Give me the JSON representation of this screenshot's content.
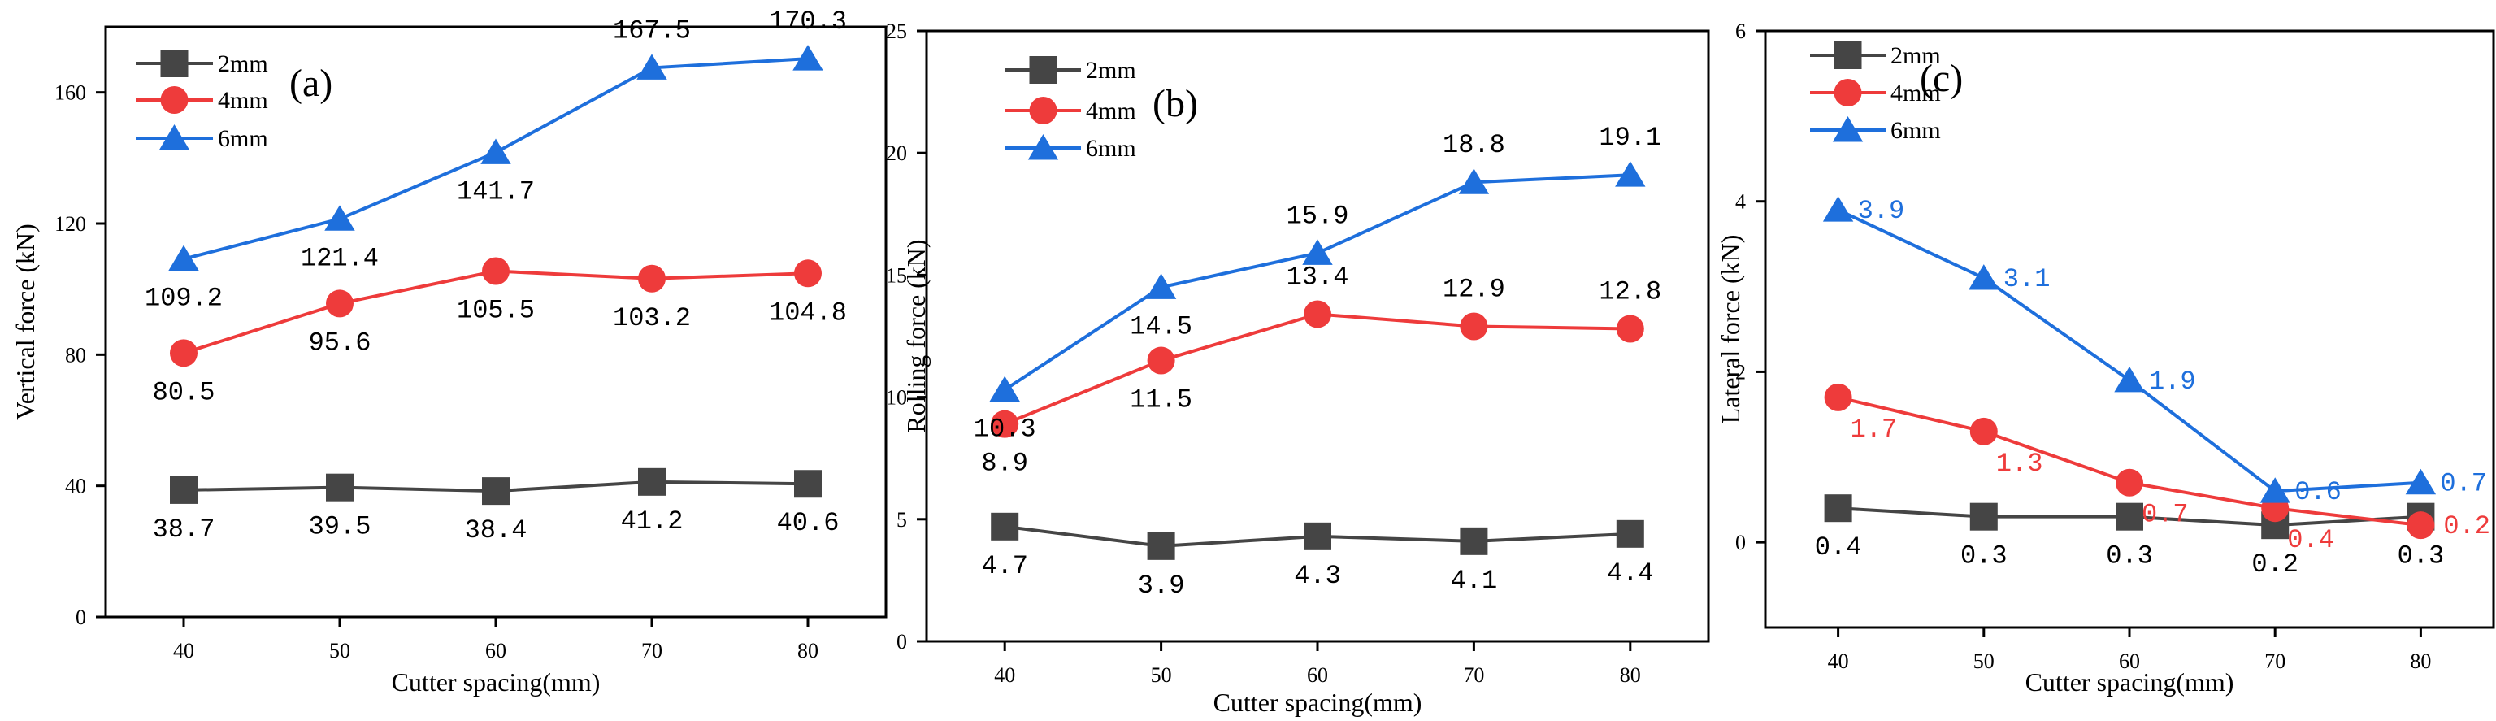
{
  "chart_data": [
    {
      "type": "line",
      "panel": "(a)",
      "xlabel": "Cutter spacing(mm)",
      "ylabel": "Vertical force (kN)",
      "x": [
        40,
        50,
        60,
        70,
        80
      ],
      "x_ticks": [
        "40",
        "50",
        "60",
        "70",
        "80"
      ],
      "y_ticks": [
        "0",
        "40",
        "80",
        "120",
        "160"
      ],
      "xlim": [
        35,
        85
      ],
      "ylim": [
        0,
        180
      ],
      "legend_position": "top-left",
      "series": [
        {
          "name": "2mm",
          "marker": "square",
          "color": "#454545",
          "label_color": "#000000",
          "values": [
            38.7,
            39.5,
            38.4,
            41.2,
            40.6
          ],
          "labels": [
            "38.7",
            "39.5",
            "38.4",
            "41.2",
            "40.6"
          ]
        },
        {
          "name": "4mm",
          "marker": "circle",
          "color": "#ee3b3b",
          "label_color": "#000000",
          "values": [
            80.5,
            95.6,
            105.5,
            103.2,
            104.8
          ],
          "labels": [
            "80.5",
            "95.6",
            "105.5",
            "103.2",
            "104.8"
          ]
        },
        {
          "name": "6mm",
          "marker": "triangle",
          "color": "#1e6fdc",
          "label_color": "#000000",
          "values": [
            109.2,
            121.4,
            141.7,
            167.5,
            170.3
          ],
          "labels": [
            "109.2",
            "121.4",
            "141.7",
            "167.5",
            "170.3"
          ]
        }
      ]
    },
    {
      "type": "line",
      "panel": "(b)",
      "xlabel": "Cutter spacing(mm)",
      "ylabel": "Rolling force (kN)",
      "x": [
        40,
        50,
        60,
        70,
        80
      ],
      "x_ticks": [
        "40",
        "50",
        "60",
        "70",
        "80"
      ],
      "y_ticks": [
        "0",
        "5",
        "10",
        "15",
        "20",
        "25"
      ],
      "xlim": [
        35,
        85
      ],
      "ylim": [
        0,
        25
      ],
      "legend_position": "top-left",
      "series": [
        {
          "name": "2mm",
          "marker": "square",
          "color": "#454545",
          "label_color": "#000000",
          "values": [
            4.7,
            3.9,
            4.3,
            4.1,
            4.4
          ],
          "labels": [
            "4.7",
            "3.9",
            "4.3",
            "4.1",
            "4.4"
          ]
        },
        {
          "name": "4mm",
          "marker": "circle",
          "color": "#ee3b3b",
          "label_color": "#000000",
          "values": [
            8.9,
            11.5,
            13.4,
            12.9,
            12.8
          ],
          "labels": [
            "8.9",
            "11.5",
            "13.4",
            "12.9",
            "12.8"
          ]
        },
        {
          "name": "6mm",
          "marker": "triangle",
          "color": "#1e6fdc",
          "label_color": "#000000",
          "values": [
            10.3,
            14.5,
            15.9,
            18.8,
            19.1
          ],
          "labels": [
            "10.3",
            "14.5",
            "15.9",
            "18.8",
            "19.1"
          ]
        }
      ]
    },
    {
      "type": "line",
      "panel": "(c)",
      "xlabel": "Cutter spacing(mm)",
      "ylabel": "Lateral force (kN)",
      "x": [
        40,
        50,
        60,
        70,
        80
      ],
      "x_ticks": [
        "40",
        "50",
        "60",
        "70",
        "80"
      ],
      "y_ticks": [
        "0",
        "2",
        "4",
        "6"
      ],
      "xlim": [
        35,
        85
      ],
      "ylim": [
        -1,
        6
      ],
      "legend_position": "top-left",
      "series": [
        {
          "name": "2mm",
          "marker": "square",
          "color": "#454545",
          "label_color": "#000000",
          "values": [
            0.4,
            0.3,
            0.3,
            0.2,
            0.3
          ],
          "labels": [
            "0.4",
            "0.3",
            "0.3",
            "0.2",
            "0.3"
          ]
        },
        {
          "name": "4mm",
          "marker": "circle",
          "color": "#ee3b3b",
          "label_color": "#ee3b3b",
          "values": [
            1.7,
            1.3,
            0.7,
            0.4,
            0.2
          ],
          "labels": [
            "1.7",
            "1.3",
            "0.7",
            "0.4",
            "0.2"
          ]
        },
        {
          "name": "6mm",
          "marker": "triangle",
          "color": "#1e6fdc",
          "label_color": "#1e6fdc",
          "values": [
            3.9,
            3.1,
            1.9,
            0.6,
            0.7
          ],
          "labels": [
            "3.9",
            "3.1",
            "1.9",
            "0.6",
            "0.7"
          ]
        }
      ]
    }
  ]
}
